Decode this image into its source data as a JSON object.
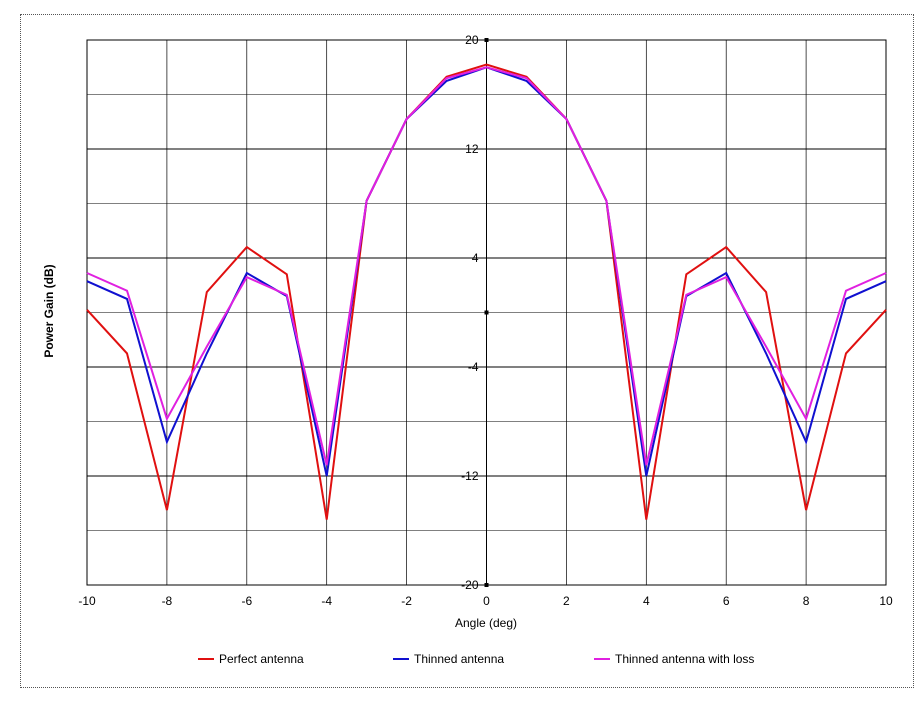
{
  "chart_data": {
    "type": "line",
    "title": "",
    "xlabel": "Angle (deg)",
    "ylabel": "Power Gain (dB)",
    "xlim": [
      -10,
      10
    ],
    "ylim": [
      -20,
      20
    ],
    "x_ticks": [
      -10,
      -8,
      -6,
      -4,
      -2,
      0,
      2,
      4,
      6,
      8,
      10
    ],
    "y_ticks": [
      20,
      12,
      4,
      -4,
      -12,
      -20
    ],
    "grid": true,
    "legend_position": "bottom",
    "x": [
      -10,
      -9,
      -8,
      -7,
      -6,
      -5,
      -4,
      -3,
      -2,
      -1,
      0,
      1,
      2,
      3,
      4,
      5,
      6,
      7,
      8,
      9,
      10
    ],
    "series": [
      {
        "name": "Perfect antenna",
        "color": "#e01010",
        "values": [
          0.2,
          -3.0,
          -14.5,
          1.5,
          4.8,
          2.8,
          -15.2,
          8.2,
          14.2,
          17.3,
          18.2,
          17.3,
          14.2,
          8.2,
          -15.2,
          2.8,
          4.8,
          1.5,
          -14.5,
          -3.0,
          0.2
        ]
      },
      {
        "name": "Thinned antenna",
        "color": "#1010d0",
        "values": [
          2.3,
          1.0,
          -9.5,
          -3.0,
          2.9,
          1.2,
          -12.0,
          8.2,
          14.2,
          17.0,
          18.0,
          17.0,
          14.2,
          8.2,
          -12.0,
          1.2,
          2.9,
          -3.0,
          -9.5,
          1.0,
          2.3
        ]
      },
      {
        "name": "Thinned antenna with loss",
        "color": "#e020e0",
        "values": [
          2.9,
          1.6,
          -7.8,
          -2.5,
          2.6,
          1.3,
          -11.2,
          8.2,
          14.2,
          17.2,
          18.0,
          17.2,
          14.2,
          8.2,
          -11.2,
          1.3,
          2.6,
          -2.5,
          -7.8,
          1.6,
          2.9
        ]
      }
    ]
  }
}
